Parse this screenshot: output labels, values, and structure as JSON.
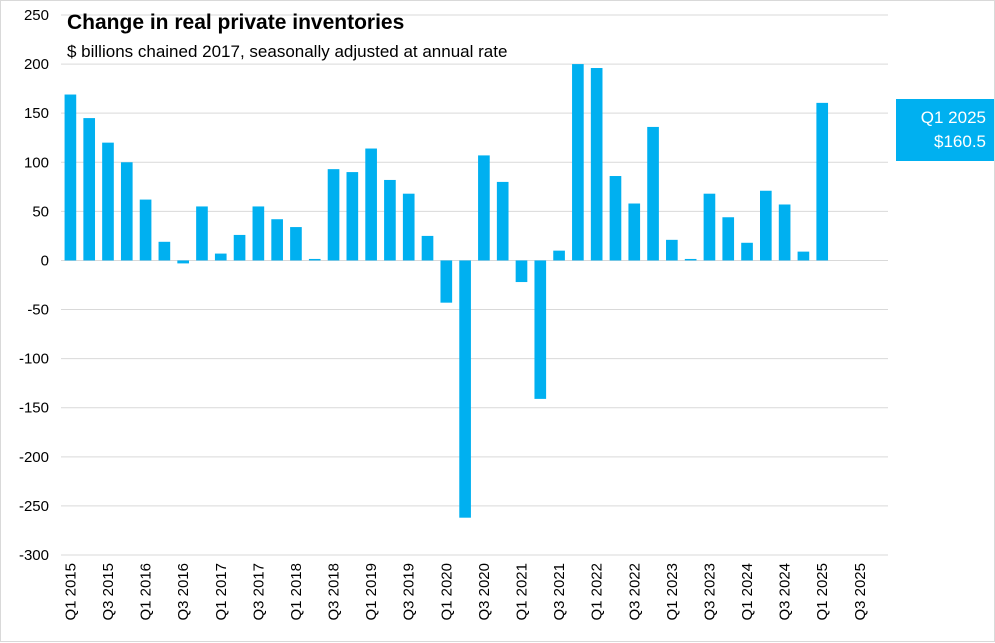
{
  "chart_data": {
    "type": "bar",
    "title": "Change in real private inventories",
    "subtitle": "$ billions chained 2017, seasonally adjusted at annual rate",
    "xlabel": "",
    "ylabel": "",
    "ylim": [
      -300,
      250
    ],
    "ytick_step": 50,
    "grid": true,
    "bar_color": "#00b0f0",
    "grid_color": "#d9d9d9",
    "categories": [
      "Q1 2015",
      "Q2 2015",
      "Q3 2015",
      "Q4 2015",
      "Q1 2016",
      "Q2 2016",
      "Q3 2016",
      "Q4 2016",
      "Q1 2017",
      "Q2 2017",
      "Q3 2017",
      "Q4 2017",
      "Q1 2018",
      "Q2 2018",
      "Q3 2018",
      "Q4 2018",
      "Q1 2019",
      "Q2 2019",
      "Q3 2019",
      "Q4 2019",
      "Q1 2020",
      "Q2 2020",
      "Q3 2020",
      "Q4 2020",
      "Q1 2021",
      "Q2 2021",
      "Q3 2021",
      "Q4 2021",
      "Q1 2022",
      "Q2 2022",
      "Q3 2022",
      "Q4 2022",
      "Q1 2023",
      "Q2 2023",
      "Q3 2023",
      "Q4 2023",
      "Q1 2024",
      "Q2 2024",
      "Q3 2024",
      "Q4 2024",
      "Q1 2025",
      "Q2 2025",
      "Q3 2025",
      "Q4 2025"
    ],
    "values": [
      169,
      145,
      120,
      100,
      62,
      19,
      -3,
      55,
      7,
      26,
      55,
      42,
      34,
      1,
      93,
      90,
      114,
      82,
      68,
      25,
      -43,
      -262,
      107,
      80,
      -22,
      -141,
      10,
      200,
      196,
      86,
      58,
      136,
      21,
      0,
      68,
      44,
      18,
      71,
      57,
      9,
      160.5,
      null,
      null,
      null
    ],
    "tick_labels": [
      "Q1 2015",
      "Q3 2015",
      "Q1 2016",
      "Q3 2016",
      "Q1 2017",
      "Q3 2017",
      "Q1 2018",
      "Q3 2018",
      "Q1 2019",
      "Q3 2019",
      "Q1 2020",
      "Q3 2020",
      "Q1 2021",
      "Q3 2021",
      "Q1 2022",
      "Q3 2022",
      "Q1 2023",
      "Q3 2023",
      "Q1 2024",
      "Q3 2024",
      "Q1 2025",
      "Q3 2025"
    ],
    "annotation": {
      "line1": "Q1 2025",
      "line2": "$160.5"
    }
  }
}
